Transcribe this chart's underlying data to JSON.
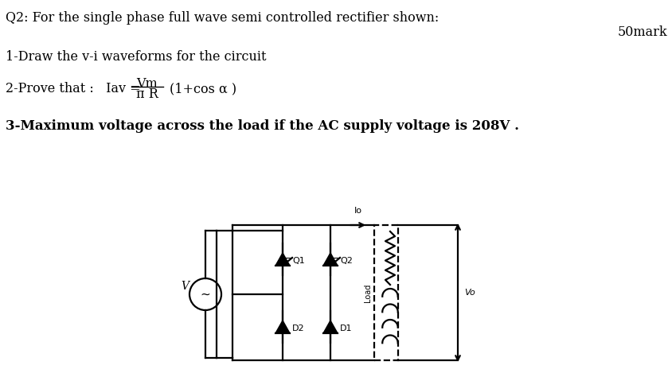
{
  "title_line1": "Q2: For the single phase full wave semi controlled rectifier shown:",
  "mark_text": "50mark",
  "line1": "1-Draw the v-i waveforms for the circuit",
  "line3": "3-Maximum voltage across the load if the AC supply voltage is 208V .",
  "bg_color": "#ffffff",
  "text_color": "#000000",
  "circuit_color": "#000000",
  "font_size_main": 11.5,
  "font_size_serif": 12.0
}
